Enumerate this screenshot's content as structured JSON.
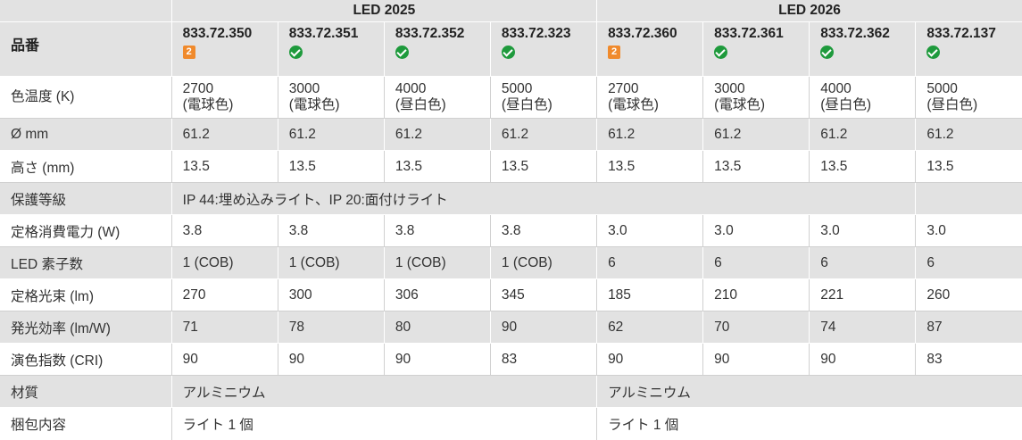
{
  "header": {
    "group1": "LED 2025",
    "group2": "LED 2026",
    "row_label": "品番",
    "products": [
      {
        "code": "833.72.350",
        "mark": "badge",
        "badge_text": "2"
      },
      {
        "code": "833.72.351",
        "mark": "check"
      },
      {
        "code": "833.72.352",
        "mark": "check"
      },
      {
        "code": "833.72.323",
        "mark": "check"
      },
      {
        "code": "833.72.360",
        "mark": "badge",
        "badge_text": "2"
      },
      {
        "code": "833.72.361",
        "mark": "check"
      },
      {
        "code": "833.72.362",
        "mark": "check"
      },
      {
        "code": "833.72.137",
        "mark": "check"
      }
    ]
  },
  "rows": {
    "color_temp": {
      "label": "色温度 (K)",
      "values": [
        {
          "k": "2700",
          "desc": "(電球色)"
        },
        {
          "k": "3000",
          "desc": "(電球色)"
        },
        {
          "k": "4000",
          "desc": "(昼白色)"
        },
        {
          "k": "5000",
          "desc": "(昼白色)"
        },
        {
          "k": "2700",
          "desc": "(電球色)"
        },
        {
          "k": "3000",
          "desc": "(電球色)"
        },
        {
          "k": "4000",
          "desc": "(昼白色)"
        },
        {
          "k": "5000",
          "desc": "(昼白色)"
        }
      ]
    },
    "diameter": {
      "label": "Ø mm",
      "values": [
        "61.2",
        "61.2",
        "61.2",
        "61.2",
        "61.2",
        "61.2",
        "61.2",
        "61.2"
      ]
    },
    "height": {
      "label": "高さ (mm)",
      "values": [
        "13.5",
        "13.5",
        "13.5",
        "13.5",
        "13.5",
        "13.5",
        "13.5",
        "13.5"
      ]
    },
    "protection": {
      "label": "保護等級",
      "value": "IP 44:埋め込みライト、IP 20:面付けライト",
      "last": ""
    },
    "power": {
      "label": "定格消費電力 (W)",
      "values": [
        "3.8",
        "3.8",
        "3.8",
        "3.8",
        "3.0",
        "3.0",
        "3.0",
        "3.0"
      ]
    },
    "led_count": {
      "label": "LED 素子数",
      "values": [
        "1 (COB)",
        "1 (COB)",
        "1 (COB)",
        "1 (COB)",
        "6",
        "6",
        "6",
        "6"
      ]
    },
    "flux": {
      "label": "定格光束 (lm)",
      "values": [
        "270",
        "300",
        "306",
        "345",
        "185",
        "210",
        "221",
        "260"
      ]
    },
    "efficacy": {
      "label": "発光効率 (lm/W)",
      "values": [
        "71",
        "78",
        "80",
        "90",
        "62",
        "70",
        "74",
        "87"
      ]
    },
    "cri": {
      "label": "演色指数 (CRI)",
      "values": [
        "90",
        "90",
        "90",
        "83",
        "90",
        "90",
        "90",
        "83"
      ]
    },
    "material": {
      "label": "材質",
      "group1": "アルミニウム",
      "group2": "アルミニウム"
    },
    "package": {
      "label": "梱包内容",
      "group1": "ライト 1 個",
      "group2": "ライト 1 個"
    }
  }
}
